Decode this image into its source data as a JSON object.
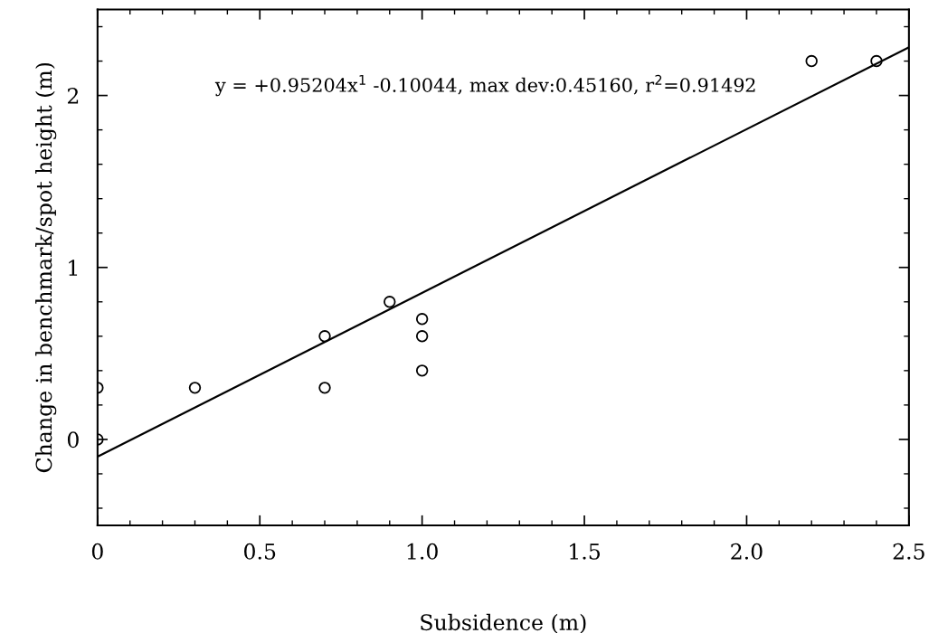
{
  "chart_data": {
    "type": "scatter",
    "xlabel": "Subsidence (m)",
    "ylabel": "Change in benchmark/spot height (m)",
    "x": [
      0,
      0,
      0.3,
      0.7,
      0.7,
      0.9,
      1.0,
      1.0,
      1.0,
      2.2,
      2.4
    ],
    "series": [
      {
        "color": "#000000",
        "marker": "circle",
        "values": [
          0.3,
          0,
          0.3,
          0.6,
          0.3,
          0.8,
          0.7,
          0.6,
          0.4,
          2.2,
          2.2
        ]
      },
      {
        "type": "line",
        "color": "#000000",
        "marker": "none",
        "line_style": "solid",
        "x": [
          0,
          2.5
        ],
        "values": [
          -0.1,
          2.28
        ]
      }
    ],
    "annotations": [
      "y = +0.95204x$^{1}$ -0.10044, max dev:0.45160, r$^{2}$=0.91492"
    ],
    "xlim": [
      0,
      2.5
    ],
    "ylim": [
      -0.5,
      2.5
    ],
    "xticks": [
      0,
      {
        "value": 0.1,
        "label": null
      },
      {
        "value": 0.2,
        "label": null
      },
      {
        "value": 0.3,
        "label": null
      },
      {
        "value": 0.4,
        "label": null
      },
      0.5,
      {
        "value": 0.6,
        "label": null
      },
      {
        "value": 0.7,
        "label": null
      },
      {
        "value": 0.8,
        "label": null
      },
      {
        "value": 0.9,
        "label": null
      },
      {
        "value": 1.0,
        "label": "1.0"
      },
      {
        "value": 1.1,
        "label": null
      },
      {
        "value": 1.2,
        "label": null
      },
      {
        "value": 1.3,
        "label": null
      },
      {
        "value": 1.4,
        "label": null
      },
      1.5,
      {
        "value": 1.6,
        "label": null
      },
      {
        "value": 1.7,
        "label": null
      },
      {
        "value": 1.8,
        "label": null
      },
      {
        "value": 1.9,
        "label": null
      },
      {
        "value": 2.0,
        "label": "2.0"
      },
      {
        "value": 2.1,
        "label": null
      },
      {
        "value": 2.2,
        "label": null
      },
      {
        "value": 2.3,
        "label": null
      },
      {
        "value": 2.4,
        "label": null
      },
      2.5
    ],
    "yticks": [
      {
        "value": -0.4,
        "label": null
      },
      {
        "value": -0.2,
        "label": null
      },
      0,
      {
        "value": 0.2,
        "label": null
      },
      {
        "value": 0.4,
        "label": null
      },
      {
        "value": 0.6,
        "label": null
      },
      {
        "value": 0.8,
        "label": null
      },
      1,
      {
        "value": 1.2,
        "label": null
      },
      {
        "value": 1.4,
        "label": null
      },
      {
        "value": 1.6,
        "label": null
      },
      {
        "value": 1.8,
        "label": null
      },
      2,
      {
        "value": 2.2,
        "label": null
      },
      {
        "value": 2.4,
        "label": null
      }
    ],
    "grid": false,
    "legend": false
  }
}
